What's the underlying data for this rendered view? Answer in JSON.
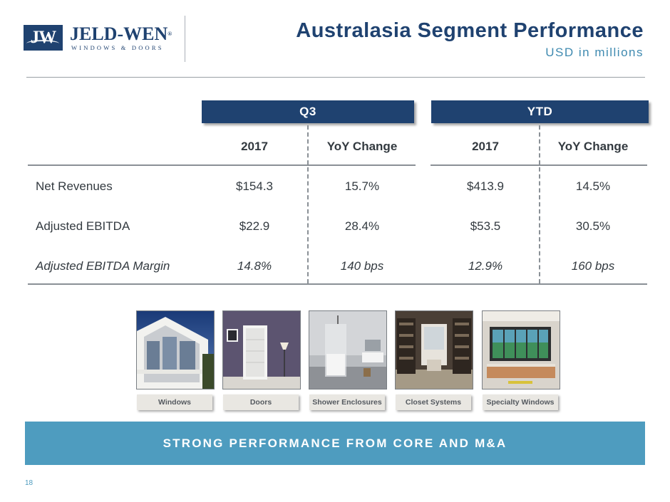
{
  "logo": {
    "badge": "JW",
    "name": "JELD-WEN",
    "mark": "®",
    "tagline": "WINDOWS & DOORS"
  },
  "header": {
    "title": "Australasia Segment Performance",
    "subtitle": "USD in millions"
  },
  "groups": {
    "q3": "Q3",
    "ytd": "YTD"
  },
  "columns": {
    "q3_year": "2017",
    "q3_change": "YoY Change",
    "ytd_year": "2017",
    "ytd_change": "YoY Change"
  },
  "rows": [
    {
      "label": "Net Revenues",
      "q3_value": "$154.3",
      "q3_change": "15.7%",
      "ytd_value": "$413.9",
      "ytd_change": "14.5%"
    },
    {
      "label": "Adjusted EBITDA",
      "q3_value": "$22.9",
      "q3_change": "28.4%",
      "ytd_value": "$53.5",
      "ytd_change": "30.5%"
    },
    {
      "label": "Adjusted EBITDA Margin",
      "q3_value": "14.8%",
      "q3_change": "140 bps",
      "ytd_value": "12.9%",
      "ytd_change": "160 bps"
    }
  ],
  "products": [
    {
      "caption": "Windows"
    },
    {
      "caption": "Doors"
    },
    {
      "caption": "Shower Enclosures"
    },
    {
      "caption": "Closet Systems"
    },
    {
      "caption": "Specialty Windows"
    }
  ],
  "banner": "STRONG PERFORMANCE FROM CORE AND M&A",
  "page_number": "18",
  "colors": {
    "navy": "#1f4270",
    "accent_blue": "#4e9cbf",
    "subtitle_blue": "#3f8ab0"
  }
}
